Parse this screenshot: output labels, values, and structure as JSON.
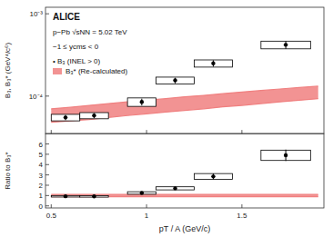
{
  "chart_data": [
    {
      "type": "scatter",
      "ylabel": "B₃, B₃* (GeV⁴/c⁶)",
      "log": "y",
      "xlim": [
        0.47,
        1.93
      ],
      "ylim": [
        3.5e-05,
        0.0012
      ],
      "xticks": [
        0.5,
        1,
        1.5
      ],
      "yticks": [
        {
          "value": 0.0001,
          "label": "10⁻⁴"
        },
        {
          "value": 0.001,
          "label": "10⁻³"
        }
      ],
      "tick_labels": "y",
      "legend": "upper left",
      "annotations": [
        "ALICE",
        "p−Pb √sNN = 5.02 TeV",
        "−1 ≤ ycms < 0",
        "• B₃ (INEL > 0)"
      ],
      "series": [
        {
          "name": "B₃* (Re-calculated)",
          "type": "area",
          "color": "#f08080",
          "x": [
            0.5,
            0.6,
            0.7,
            0.8,
            0.9,
            1.0,
            1.1,
            1.2,
            1.3,
            1.4,
            1.5,
            1.6,
            1.7,
            1.8,
            1.9
          ],
          "low": [
            4.8e-05,
            5e-05,
            5.2e-05,
            5.5e-05,
            5.8e-05,
            6.1e-05,
            6.4e-05,
            6.7e-05,
            7e-05,
            7.4e-05,
            7.7e-05,
            8.1e-05,
            8.5e-05,
            8.9e-05,
            9.3e-05
          ],
          "high": [
            7e-05,
            7.3e-05,
            7.7e-05,
            8.1e-05,
            8.5e-05,
            8.9e-05,
            9.3e-05,
            9.8e-05,
            0.000102,
            0.000107,
            0.000112,
            0.000117,
            0.000122,
            0.000127,
            0.000132
          ]
        },
        {
          "type": "scatter",
          "color": "black",
          "marker": "circle",
          "x": [
            0.575,
            0.725,
            0.975,
            1.15,
            1.35,
            1.73
          ],
          "values": [
            5.5e-05,
            5.8e-05,
            8.5e-05,
            0.000155,
            0.00025,
            0.00042
          ],
          "error_low": [
            4e-06,
            4e-06,
            8e-06,
            1.2e-05,
            2.2e-05,
            4.5e-05
          ],
          "error_high": [
            4e-06,
            4e-06,
            8e-06,
            1.2e-05,
            2.2e-05,
            4.5e-05
          ],
          "syst_x_low": [
            0.075,
            0.075,
            0.075,
            0.1,
            0.1,
            0.13
          ],
          "syst_x_high": [
            0.075,
            0.075,
            0.075,
            0.1,
            0.1,
            0.13
          ],
          "syst_low": [
            5e-06,
            5e-06,
            1e-05,
            1.5e-05,
            2.5e-05,
            4.5e-05
          ],
          "syst_high": [
            5e-06,
            5e-06,
            1e-05,
            1.5e-05,
            2.5e-05,
            4.5e-05
          ]
        }
      ]
    },
    {
      "type": "scatter",
      "xlabel": "pT / A (GeV/c)",
      "ylabel": "Ratio to B₃*",
      "xlim": [
        0.47,
        1.93
      ],
      "ylim": [
        -0.2,
        7.0
      ],
      "xticks": [
        0.5,
        1,
        1.5
      ],
      "yticks": [
        0,
        1,
        2,
        3,
        4,
        5,
        6
      ],
      "series": [
        {
          "type": "area",
          "color": "#f08080",
          "x": [
            0.5,
            0.6,
            0.7,
            0.8,
            0.9,
            1.0,
            1.1,
            1.2,
            1.3,
            1.4,
            1.5,
            1.6,
            1.7,
            1.8,
            1.9
          ],
          "low": [
            0.88,
            0.88,
            0.88,
            0.88,
            0.88,
            0.88,
            0.88,
            0.88,
            0.88,
            0.88,
            0.88,
            0.88,
            0.88,
            0.88,
            0.88
          ],
          "high": [
            1.12,
            1.12,
            1.12,
            1.12,
            1.12,
            1.12,
            1.12,
            1.12,
            1.12,
            1.12,
            1.12,
            1.12,
            1.12,
            1.12,
            1.12
          ]
        },
        {
          "type": "scatter",
          "color": "black",
          "marker": "circle",
          "x": [
            0.575,
            0.725,
            0.975,
            1.15,
            1.35,
            1.73
          ],
          "values": [
            0.93,
            0.92,
            1.25,
            1.7,
            2.85,
            4.9
          ],
          "error_low": [
            0.08,
            0.07,
            0.12,
            0.15,
            0.28,
            0.55
          ],
          "error_high": [
            0.08,
            0.07,
            0.12,
            0.15,
            0.28,
            0.55
          ],
          "syst_x_low": [
            0.075,
            0.075,
            0.075,
            0.1,
            0.1,
            0.13
          ],
          "syst_x_high": [
            0.075,
            0.075,
            0.075,
            0.1,
            0.1,
            0.13
          ],
          "syst_low": [
            0.07,
            0.07,
            0.12,
            0.15,
            0.28,
            0.5
          ],
          "syst_high": [
            0.07,
            0.07,
            0.12,
            0.15,
            0.28,
            0.5
          ]
        }
      ]
    }
  ]
}
